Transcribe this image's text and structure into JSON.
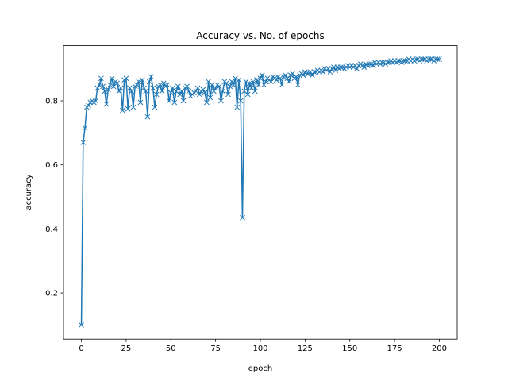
{
  "chart_data": {
    "type": "line",
    "title": "Accuracy vs. No. of epochs",
    "x_label": "epoch",
    "y_label": "accuracy",
    "x": [
      0,
      1,
      2,
      3,
      4,
      5,
      6,
      7,
      8,
      9,
      10,
      11,
      12,
      13,
      14,
      15,
      16,
      17,
      18,
      19,
      20,
      21,
      22,
      23,
      24,
      25,
      26,
      27,
      28,
      29,
      30,
      31,
      32,
      33,
      34,
      35,
      36,
      37,
      38,
      39,
      40,
      41,
      42,
      43,
      44,
      45,
      46,
      47,
      48,
      49,
      50,
      51,
      52,
      53,
      54,
      55,
      56,
      57,
      58,
      59,
      60,
      61,
      62,
      63,
      64,
      65,
      66,
      67,
      68,
      69,
      70,
      71,
      72,
      73,
      74,
      75,
      76,
      77,
      78,
      79,
      80,
      81,
      82,
      83,
      84,
      85,
      86,
      87,
      88,
      89,
      90,
      91,
      92,
      93,
      94,
      95,
      96,
      97,
      98,
      99,
      100,
      101,
      102,
      103,
      104,
      105,
      106,
      107,
      108,
      109,
      110,
      111,
      112,
      113,
      114,
      115,
      116,
      117,
      118,
      119,
      120,
      121,
      122,
      123,
      124,
      125,
      126,
      127,
      128,
      129,
      130,
      131,
      132,
      133,
      134,
      135,
      136,
      137,
      138,
      139,
      140,
      141,
      142,
      143,
      144,
      145,
      146,
      147,
      148,
      149,
      150,
      151,
      152,
      153,
      154,
      155,
      156,
      157,
      158,
      159,
      160,
      161,
      162,
      163,
      164,
      165,
      166,
      167,
      168,
      169,
      170,
      171,
      172,
      173,
      174,
      175,
      176,
      177,
      178,
      179,
      180,
      181,
      182,
      183,
      184,
      185,
      186,
      187,
      188,
      189,
      190,
      191,
      192,
      193,
      194,
      195,
      196,
      197,
      198,
      199,
      200
    ],
    "series": [
      {
        "color": "#1f77b4",
        "marker": "x",
        "values": [
          0.1,
          0.67,
          0.715,
          0.78,
          0.785,
          0.795,
          0.8,
          0.795,
          0.8,
          0.84,
          0.85,
          0.87,
          0.845,
          0.83,
          0.79,
          0.835,
          0.85,
          0.87,
          0.845,
          0.86,
          0.855,
          0.83,
          0.84,
          0.77,
          0.865,
          0.87,
          0.775,
          0.84,
          0.83,
          0.78,
          0.845,
          0.85,
          0.86,
          0.795,
          0.865,
          0.84,
          0.83,
          0.75,
          0.86,
          0.875,
          0.84,
          0.78,
          0.82,
          0.845,
          0.85,
          0.83,
          0.855,
          0.845,
          0.85,
          0.8,
          0.825,
          0.84,
          0.795,
          0.83,
          0.845,
          0.82,
          0.83,
          0.8,
          0.84,
          0.845,
          0.83,
          0.815,
          0.82,
          0.825,
          0.83,
          0.84,
          0.82,
          0.83,
          0.835,
          0.825,
          0.795,
          0.86,
          0.81,
          0.85,
          0.83,
          0.84,
          0.85,
          0.845,
          0.8,
          0.83,
          0.86,
          0.855,
          0.82,
          0.845,
          0.86,
          0.85,
          0.87,
          0.78,
          0.865,
          0.8,
          0.435,
          0.83,
          0.86,
          0.82,
          0.855,
          0.84,
          0.86,
          0.83,
          0.865,
          0.85,
          0.87,
          0.88,
          0.85,
          0.86,
          0.87,
          0.865,
          0.86,
          0.875,
          0.87,
          0.865,
          0.875,
          0.87,
          0.85,
          0.875,
          0.88,
          0.87,
          0.86,
          0.88,
          0.885,
          0.87,
          0.875,
          0.85,
          0.88,
          0.885,
          0.88,
          0.89,
          0.885,
          0.885,
          0.89,
          0.88,
          0.89,
          0.89,
          0.895,
          0.89,
          0.895,
          0.89,
          0.9,
          0.895,
          0.9,
          0.89,
          0.9,
          0.905,
          0.895,
          0.905,
          0.9,
          0.905,
          0.905,
          0.9,
          0.905,
          0.91,
          0.905,
          0.91,
          0.905,
          0.91,
          0.9,
          0.91,
          0.915,
          0.91,
          0.905,
          0.915,
          0.91,
          0.915,
          0.915,
          0.91,
          0.92,
          0.915,
          0.92,
          0.915,
          0.92,
          0.92,
          0.915,
          0.92,
          0.92,
          0.925,
          0.92,
          0.925,
          0.92,
          0.925,
          0.925,
          0.92,
          0.925,
          0.925,
          0.925,
          0.93,
          0.925,
          0.93,
          0.925,
          0.93,
          0.93,
          0.925,
          0.93,
          0.93,
          0.93,
          0.925,
          0.93,
          0.93,
          0.93,
          0.925,
          0.93,
          0.93,
          0.93
        ]
      }
    ],
    "xlim": [
      -10,
      210
    ],
    "ylim": [
      0.056,
      0.972
    ],
    "xticks": [
      0,
      25,
      50,
      75,
      100,
      125,
      150,
      175,
      200
    ],
    "yticks": [
      0.2,
      0.4,
      0.6,
      0.8
    ],
    "grid": false
  }
}
